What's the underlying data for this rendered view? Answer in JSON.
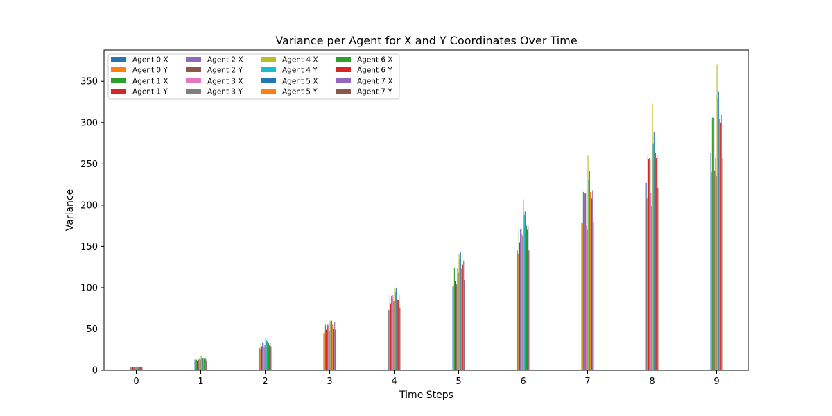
{
  "chart_data": {
    "type": "bar",
    "title": "Variance per Agent for X and Y Coordinates Over Time",
    "xlabel": "Time Steps",
    "ylabel": "Variance",
    "categories": [
      "0",
      "1",
      "2",
      "3",
      "4",
      "5",
      "6",
      "7",
      "8",
      "9"
    ],
    "xlim": [
      -0.5,
      9.5
    ],
    "ylim": [
      0,
      388
    ],
    "yticks": [
      0,
      50,
      100,
      150,
      200,
      250,
      300,
      350
    ],
    "grid": false,
    "legend": {
      "placement": "top-left",
      "columns": 4
    },
    "series": [
      {
        "name": "Agent 0 X",
        "color": "#1f77b4",
        "values": [
          3.6,
          13,
          27,
          45,
          73,
          101,
          145,
          179,
          227,
          263
        ]
      },
      {
        "name": "Agent 0 Y",
        "color": "#ff7f0e",
        "values": [
          3.2,
          11,
          26,
          44,
          73,
          102,
          141,
          179,
          208,
          240
        ]
      },
      {
        "name": "Agent 1 X",
        "color": "#2ca02c",
        "values": [
          4.0,
          13,
          33,
          55,
          91,
          124,
          171,
          216,
          261,
          306
        ]
      },
      {
        "name": "Agent 1 Y",
        "color": "#d62728",
        "values": [
          3.4,
          12,
          29,
          49,
          81,
          108,
          155,
          197,
          256,
          290
        ]
      },
      {
        "name": "Agent 2 X",
        "color": "#9467bd",
        "values": [
          4.2,
          13,
          34,
          54,
          90,
          103,
          171,
          214,
          257,
          306
        ]
      },
      {
        "name": "Agent 2 Y",
        "color": "#8c564b",
        "values": [
          3.8,
          13,
          33,
          55,
          87,
          104,
          172,
          214,
          256,
          242
        ]
      },
      {
        "name": "Agent 3 X",
        "color": "#e377c2",
        "values": [
          4.0,
          15,
          28,
          55,
          91,
          124,
          165,
          175,
          215,
          257
        ]
      },
      {
        "name": "Agent 3 Y",
        "color": "#7f7f7f",
        "values": [
          3.7,
          13,
          31,
          48,
          84,
          118,
          162,
          170,
          199,
          235
        ]
      },
      {
        "name": "Agent 4 X",
        "color": "#bcbd22",
        "values": [
          4.6,
          18,
          39,
          60,
          100,
          141,
          207,
          260,
          323,
          370
        ]
      },
      {
        "name": "Agent 4 Y",
        "color": "#17becf",
        "values": [
          4.3,
          16,
          37,
          58,
          95,
          134,
          188,
          230,
          275,
          330
        ]
      },
      {
        "name": "Agent 5 X",
        "color": "#1f77b4",
        "values": [
          4.1,
          15,
          35,
          60,
          100,
          143,
          192,
          241,
          288,
          338
        ]
      },
      {
        "name": "Agent 5 Y",
        "color": "#ff7f0e",
        "values": [
          4.0,
          14,
          35,
          55,
          88,
          123,
          173,
          216,
          263,
          305
        ]
      },
      {
        "name": "Agent 6 X",
        "color": "#2ca02c",
        "values": [
          4.3,
          14,
          33,
          56,
          86,
          130,
          175,
          211,
          263,
          305
        ]
      },
      {
        "name": "Agent 6 Y",
        "color": "#d62728",
        "values": [
          3.9,
          13,
          30,
          50,
          85,
          128,
          170,
          208,
          257,
          300
        ]
      },
      {
        "name": "Agent 7 X",
        "color": "#9467bd",
        "values": [
          4.1,
          14,
          34,
          58,
          92,
          133,
          175,
          218,
          260,
          309
        ]
      },
      {
        "name": "Agent 7 Y",
        "color": "#8c564b",
        "values": [
          3.5,
          12,
          29,
          49,
          76,
          109,
          145,
          180,
          221,
          257
        ]
      }
    ]
  }
}
